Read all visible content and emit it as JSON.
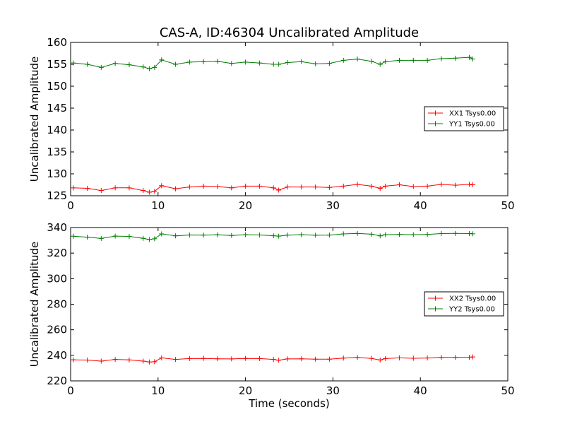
{
  "chart_data": [
    {
      "type": "line",
      "title": "CAS-A, ID:46304 Uncalibrated Amplitude",
      "xlabel": "",
      "ylabel": "Uncalibrated Amplitude",
      "xlim": [
        0,
        50
      ],
      "ylim": [
        125,
        160
      ],
      "xticks": [
        0,
        10,
        20,
        30,
        40,
        50
      ],
      "yticks": [
        125,
        130,
        135,
        140,
        145,
        150,
        155,
        160
      ],
      "grid": false,
      "legend_position": "right",
      "marker": "+",
      "series": [
        {
          "name": "XX1 Tsys0.00",
          "color": "#ff0000",
          "x": [
            0.3,
            1.9,
            3.5,
            5.1,
            6.7,
            8.3,
            9.0,
            9.6,
            10.4,
            12.0,
            13.6,
            15.2,
            16.8,
            18.4,
            20.0,
            21.6,
            23.2,
            23.8,
            24.8,
            26.4,
            28.0,
            29.6,
            31.2,
            32.8,
            34.4,
            35.4,
            36.0,
            37.6,
            39.2,
            40.8,
            42.4,
            44.0,
            45.6,
            46.0
          ],
          "y": [
            126.8,
            126.7,
            126.2,
            126.8,
            126.8,
            126.2,
            125.8,
            126.0,
            127.3,
            126.6,
            127.0,
            127.2,
            127.1,
            126.8,
            127.2,
            127.2,
            126.8,
            126.3,
            127.0,
            127.0,
            127.0,
            126.9,
            127.2,
            127.6,
            127.2,
            126.7,
            127.2,
            127.5,
            127.1,
            127.2,
            127.6,
            127.4,
            127.6,
            127.5
          ],
          "values": [
            126.8,
            126.7,
            126.2,
            126.8,
            126.8,
            126.2,
            125.8,
            126.0,
            127.3,
            126.6,
            127.0,
            127.2,
            127.1,
            126.8,
            127.2,
            127.2,
            126.8,
            126.3,
            127.0,
            127.0,
            127.0,
            126.9,
            127.2,
            127.6,
            127.2,
            126.7,
            127.2,
            127.5,
            127.1,
            127.2,
            127.6,
            127.4,
            127.6,
            127.5
          ]
        },
        {
          "name": "YY1 Tsys0.00",
          "color": "#007f00",
          "x": [
            0.3,
            1.9,
            3.5,
            5.1,
            6.7,
            8.3,
            9.0,
            9.6,
            10.4,
            12.0,
            13.6,
            15.2,
            16.8,
            18.4,
            20.0,
            21.6,
            23.2,
            23.8,
            24.8,
            26.4,
            28.0,
            29.6,
            31.2,
            32.8,
            34.4,
            35.4,
            36.0,
            37.6,
            39.2,
            40.8,
            42.4,
            44.0,
            45.6,
            46.0
          ],
          "y": [
            155.3,
            155.0,
            154.3,
            155.2,
            154.9,
            154.4,
            154.0,
            154.3,
            156.0,
            155.0,
            155.5,
            155.6,
            155.7,
            155.2,
            155.5,
            155.3,
            155.0,
            155.0,
            155.4,
            155.6,
            155.1,
            155.2,
            155.9,
            156.2,
            155.7,
            155.0,
            155.6,
            155.9,
            155.9,
            155.9,
            156.3,
            156.4,
            156.6,
            156.2
          ],
          "values": [
            155.3,
            155.0,
            154.3,
            155.2,
            154.9,
            154.4,
            154.0,
            154.3,
            156.0,
            155.0,
            155.5,
            155.6,
            155.7,
            155.2,
            155.5,
            155.3,
            155.0,
            155.0,
            155.4,
            155.6,
            155.1,
            155.2,
            155.9,
            156.2,
            155.7,
            155.0,
            155.6,
            155.9,
            155.9,
            155.9,
            156.3,
            156.4,
            156.6,
            156.2
          ]
        }
      ]
    },
    {
      "type": "line",
      "title": "",
      "xlabel": "Time (seconds)",
      "ylabel": "Uncalibrated Amplitude",
      "xlim": [
        0,
        50
      ],
      "ylim": [
        220,
        340
      ],
      "xticks": [
        0,
        10,
        20,
        30,
        40,
        50
      ],
      "yticks": [
        220,
        240,
        260,
        280,
        300,
        320,
        340
      ],
      "grid": false,
      "legend_position": "right",
      "marker": "+",
      "series": [
        {
          "name": "XX2 Tsys0.00",
          "color": "#ff0000",
          "x": [
            0.3,
            1.9,
            3.5,
            5.1,
            6.7,
            8.3,
            9.0,
            9.6,
            10.4,
            12.0,
            13.6,
            15.2,
            16.8,
            18.4,
            20.0,
            21.6,
            23.2,
            23.8,
            24.8,
            26.4,
            28.0,
            29.6,
            31.2,
            32.8,
            34.4,
            35.4,
            36.0,
            37.6,
            39.2,
            40.8,
            42.4,
            44.0,
            45.6,
            46.0
          ],
          "y": [
            236.5,
            236.3,
            235.5,
            236.8,
            236.4,
            235.5,
            234.8,
            235.0,
            238.0,
            236.8,
            237.5,
            237.6,
            237.3,
            237.2,
            237.6,
            237.5,
            236.8,
            236.2,
            237.2,
            237.3,
            237.0,
            237.0,
            237.8,
            238.4,
            237.6,
            236.3,
            237.5,
            238.0,
            237.7,
            237.9,
            238.4,
            238.4,
            238.5,
            238.7
          ],
          "values": [
            236.5,
            236.3,
            235.5,
            236.8,
            236.4,
            235.5,
            234.8,
            235.0,
            238.0,
            236.8,
            237.5,
            237.6,
            237.3,
            237.2,
            237.6,
            237.5,
            236.8,
            236.2,
            237.2,
            237.3,
            237.0,
            237.0,
            237.8,
            238.4,
            237.6,
            236.3,
            237.5,
            238.0,
            237.7,
            237.9,
            238.4,
            238.4,
            238.5,
            238.7
          ]
        },
        {
          "name": "YY2 Tsys0.00",
          "color": "#007f00",
          "x": [
            0.3,
            1.9,
            3.5,
            5.1,
            6.7,
            8.3,
            9.0,
            9.6,
            10.4,
            12.0,
            13.6,
            15.2,
            16.8,
            18.4,
            20.0,
            21.6,
            23.2,
            23.8,
            24.8,
            26.4,
            28.0,
            29.6,
            31.2,
            32.8,
            34.4,
            35.4,
            36.0,
            37.6,
            39.2,
            40.8,
            42.4,
            44.0,
            45.6,
            46.0
          ],
          "y": [
            333.2,
            332.5,
            331.5,
            333.3,
            333.1,
            331.6,
            330.6,
            331.2,
            335.0,
            333.5,
            334.2,
            334.1,
            334.3,
            333.8,
            334.4,
            334.2,
            333.6,
            333.3,
            334.1,
            334.4,
            334.0,
            334.1,
            335.0,
            335.4,
            334.8,
            333.5,
            334.4,
            334.6,
            334.4,
            334.6,
            335.3,
            335.4,
            335.3,
            335.1
          ],
          "values": [
            333.2,
            332.5,
            331.5,
            333.3,
            333.1,
            331.6,
            330.6,
            331.2,
            335.0,
            333.5,
            334.2,
            334.1,
            334.3,
            333.8,
            334.4,
            334.2,
            333.6,
            333.3,
            334.1,
            334.4,
            334.0,
            334.1,
            335.0,
            335.4,
            334.8,
            333.5,
            334.4,
            334.6,
            334.4,
            334.6,
            335.3,
            335.4,
            335.3,
            335.1
          ]
        }
      ]
    }
  ]
}
